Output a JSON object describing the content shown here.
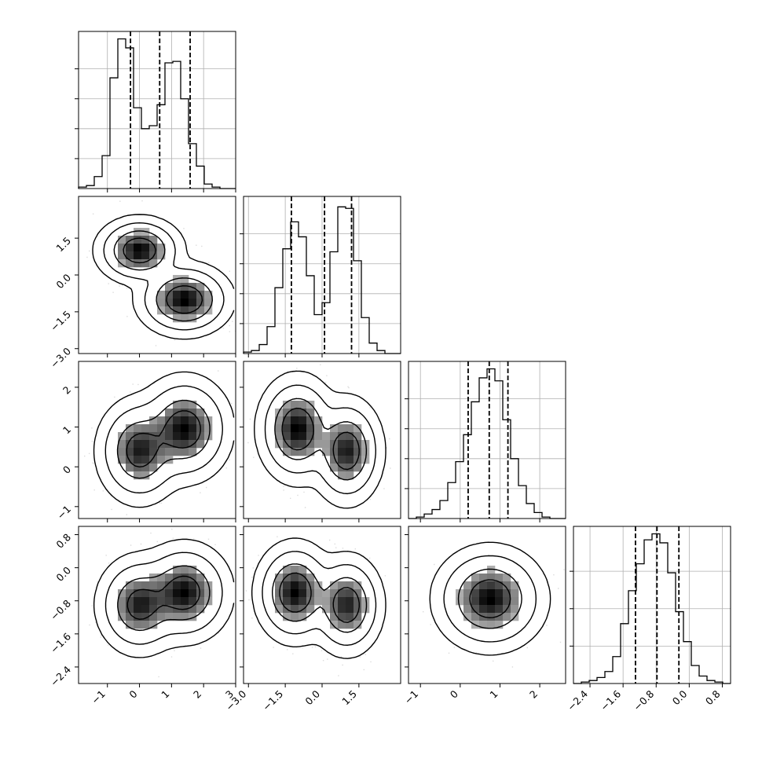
{
  "chart_data": {
    "type": "corner",
    "n_params": 4,
    "params": [
      {
        "ticks": [
          -1,
          0,
          1,
          2,
          3
        ],
        "tick_labels": [
          "−1",
          "0",
          "1",
          "2",
          "3"
        ],
        "range": [
          -1.9,
          3.0
        ],
        "quantiles": [
          -0.28,
          0.63,
          1.58
        ],
        "hist_edges": [
          -1.9,
          -1.655,
          -1.41,
          -1.165,
          -0.92,
          -0.675,
          -0.43,
          -0.185,
          0.06,
          0.305,
          0.55,
          0.795,
          1.04,
          1.285,
          1.53,
          1.775,
          2.02,
          2.265,
          2.51,
          2.755,
          3.0
        ],
        "hist_values": [
          0.01,
          0.02,
          0.08,
          0.22,
          0.74,
          1.0,
          0.94,
          0.54,
          0.4,
          0.42,
          0.56,
          0.84,
          0.85,
          0.6,
          0.3,
          0.15,
          0.03,
          0.01,
          0.0,
          0.0
        ],
        "hist_y_ticks": [
          0.2,
          0.4,
          0.6,
          0.8
        ]
      },
      {
        "ticks": [
          -3.0,
          -1.5,
          0.0,
          1.5
        ],
        "tick_labels": [
          "−3.0",
          "−1.5",
          "0.0",
          "1.5"
        ],
        "range": [
          -3.2,
          3.2
        ],
        "quantiles": [
          -1.25,
          0.1,
          1.2
        ],
        "hist_edges": [
          -3.2,
          -2.88,
          -2.56,
          -2.24,
          -1.92,
          -1.6,
          -1.28,
          -0.96,
          -0.64,
          -0.32,
          0.0,
          0.32,
          0.64,
          0.96,
          1.28,
          1.6,
          1.92,
          2.24,
          2.56,
          2.88,
          3.2
        ],
        "hist_values": [
          0.01,
          0.02,
          0.06,
          0.18,
          0.44,
          0.7,
          0.88,
          0.78,
          0.52,
          0.26,
          0.34,
          0.68,
          0.98,
          0.97,
          0.62,
          0.24,
          0.07,
          0.02,
          0.0,
          0.0
        ],
        "hist_y_ticks": [
          0.2,
          0.4,
          0.6,
          0.8
        ]
      },
      {
        "ticks": [
          -1,
          0,
          1,
          2
        ],
        "tick_labels": [
          "−1",
          "0",
          "1",
          "2"
        ],
        "range": [
          -1.3,
          2.65
        ],
        "quantiles": [
          0.2,
          0.73,
          1.2
        ],
        "hist_edges": [
          -1.3,
          -1.1025,
          -0.905,
          -0.7075,
          -0.51,
          -0.3125,
          -0.115,
          0.0825,
          0.28,
          0.4775,
          0.675,
          0.8725,
          1.07,
          1.2675,
          1.465,
          1.6625,
          1.86,
          2.0575,
          2.255,
          2.4525,
          2.65
        ],
        "hist_values": [
          0.0,
          0.01,
          0.03,
          0.06,
          0.12,
          0.24,
          0.38,
          0.56,
          0.78,
          0.94,
          1.0,
          0.92,
          0.66,
          0.4,
          0.22,
          0.1,
          0.04,
          0.01,
          0.0,
          0.0
        ],
        "hist_y_ticks": [
          0.2,
          0.4,
          0.6,
          0.8
        ]
      },
      {
        "ticks": [
          -2.4,
          -1.6,
          -0.8,
          0.0,
          0.8
        ],
        "tick_labels": [
          "−2.4",
          "−1.6",
          "−0.8",
          "0.0",
          "0.8"
        ],
        "range": [
          -2.8,
          1.0
        ],
        "quantiles": [
          -1.3,
          -0.78,
          -0.25
        ],
        "hist_edges": [
          -2.8,
          -2.61,
          -2.42,
          -2.23,
          -2.04,
          -1.85,
          -1.66,
          -1.47,
          -1.28,
          -1.09,
          -0.9,
          -0.71,
          -0.52,
          -0.33,
          -0.14,
          0.05,
          0.24,
          0.43,
          0.62,
          0.81,
          1.0
        ],
        "hist_values": [
          0.0,
          0.01,
          0.02,
          0.04,
          0.08,
          0.18,
          0.4,
          0.62,
          0.8,
          0.96,
          1.0,
          0.94,
          0.74,
          0.48,
          0.28,
          0.12,
          0.05,
          0.02,
          0.01,
          0.0
        ],
        "hist_y_ticks": [
          0.25,
          0.5,
          0.75
        ]
      }
    ],
    "pairs": [
      {
        "row": 1,
        "col": 0,
        "clusters": [
          {
            "mean": [
              0.0,
              1.0
            ],
            "std": [
              0.5,
              0.5
            ],
            "rho": 0.0,
            "weight": 0.45
          },
          {
            "mean": [
              1.4,
              -1.0
            ],
            "std": [
              0.55,
              0.55
            ],
            "rho": 0.0,
            "weight": 0.55
          }
        ]
      },
      {
        "row": 2,
        "col": 0,
        "clusters": [
          {
            "mean": [
              0.0,
              0.4
            ],
            "std": [
              0.5,
              0.5
            ],
            "rho": 0.0,
            "weight": 0.45
          },
          {
            "mean": [
              1.4,
              0.95
            ],
            "std": [
              0.55,
              0.5
            ],
            "rho": 0.0,
            "weight": 0.55
          }
        ]
      },
      {
        "row": 2,
        "col": 1,
        "clusters": [
          {
            "mean": [
              -1.0,
              0.95
            ],
            "std": [
              0.6,
              0.5
            ],
            "rho": 0.0,
            "weight": 0.55
          },
          {
            "mean": [
              1.0,
              0.4
            ],
            "std": [
              0.55,
              0.5
            ],
            "rho": 0.0,
            "weight": 0.45
          }
        ]
      },
      {
        "row": 3,
        "col": 0,
        "clusters": [
          {
            "mean": [
              0.0,
              -0.9
            ],
            "std": [
              0.5,
              0.45
            ],
            "rho": 0.0,
            "weight": 0.45
          },
          {
            "mean": [
              1.4,
              -0.6
            ],
            "std": [
              0.55,
              0.45
            ],
            "rho": 0.0,
            "weight": 0.55
          }
        ]
      },
      {
        "row": 3,
        "col": 1,
        "clusters": [
          {
            "mean": [
              -1.1,
              -0.6
            ],
            "std": [
              0.6,
              0.45
            ],
            "rho": 0.0,
            "weight": 0.55
          },
          {
            "mean": [
              1.0,
              -0.9
            ],
            "std": [
              0.55,
              0.45
            ],
            "rho": 0.0,
            "weight": 0.45
          }
        ]
      },
      {
        "row": 3,
        "col": 2,
        "clusters": [
          {
            "mean": [
              0.75,
              -0.75
            ],
            "std": [
              0.5,
              0.45
            ],
            "rho": 0.0,
            "weight": 1.0
          }
        ]
      }
    ],
    "contour_levels": [
      0.4,
      0.72,
      0.93,
      0.99
    ],
    "grid": true,
    "legend": "none"
  }
}
